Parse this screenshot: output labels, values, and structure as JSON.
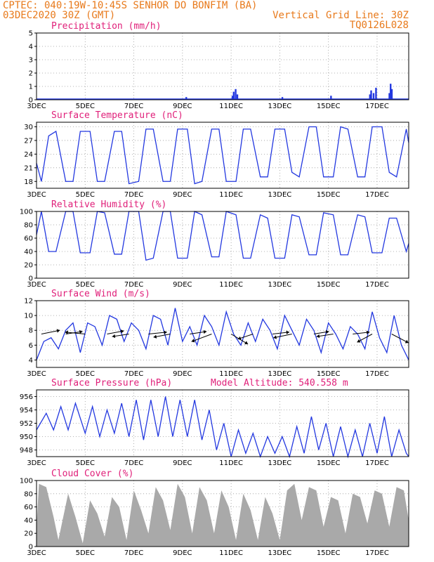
{
  "header": {
    "line1": "CPTEC:   040:19W-10:45S  SENHOR DO BONFIM (BA)",
    "line2_left": "03DEC2020 30Z (GMT)",
    "line2_right": "Vertical Grid Line: 30Z",
    "line3_right": "TQ0126L028"
  },
  "colors": {
    "header": "#e87a1c",
    "panel_title": "#e0207a",
    "series": "#2338e0",
    "cloud": "#a9a9a9"
  },
  "x_axis": {
    "date_labels": [
      "3DEC",
      "5DEC",
      "7DEC",
      "9DEC",
      "11DEC",
      "13DEC",
      "15DEC",
      "17DEC"
    ],
    "date_positions_days": [
      0,
      2,
      4,
      6,
      8,
      10,
      12,
      14
    ],
    "days_span": 15.3
  },
  "chart_data": [
    {
      "id": "precipitation",
      "type": "bar",
      "title": "Precipitation (mm/h)",
      "ylim": [
        0,
        5
      ],
      "yticks": [
        0,
        1,
        2,
        3,
        4,
        5
      ],
      "grid": true,
      "x_days": [
        6.15,
        8.05,
        8.1,
        8.18,
        8.25,
        10.1,
        12.1,
        13.7,
        13.75,
        13.85,
        13.95,
        14.5,
        14.55,
        14.6
      ],
      "values": [
        0.2,
        0.3,
        0.6,
        0.8,
        0.4,
        0.2,
        0.3,
        0.4,
        0.7,
        0.5,
        0.9,
        0.5,
        1.2,
        0.8
      ]
    },
    {
      "id": "temperature",
      "type": "line",
      "title": "Surface Temperature (nC)",
      "ylim": [
        16.5,
        31
      ],
      "yticks": [
        18,
        21,
        24,
        27,
        30
      ],
      "grid": true,
      "x_days": [
        0,
        0.2,
        0.5,
        0.8,
        1.2,
        1.5,
        1.8,
        2.2,
        2.5,
        2.8,
        3.2,
        3.5,
        3.8,
        4.2,
        4.5,
        4.8,
        5.2,
        5.5,
        5.8,
        6.2,
        6.5,
        6.8,
        7.2,
        7.5,
        7.8,
        8.2,
        8.5,
        8.8,
        9.2,
        9.5,
        9.8,
        10.2,
        10.5,
        10.8,
        11.2,
        11.5,
        11.8,
        12.2,
        12.5,
        12.8,
        13.2,
        13.5,
        13.8,
        14.2,
        14.5,
        14.8,
        15.2,
        15.3
      ],
      "values": [
        22,
        18,
        28,
        29,
        18,
        18,
        29,
        29,
        18,
        18,
        29,
        29,
        17.5,
        18,
        29.5,
        29.5,
        18,
        18,
        29.5,
        29.5,
        17.5,
        18,
        29.5,
        29.5,
        18,
        18,
        29.5,
        29.5,
        19,
        19,
        29.5,
        29.5,
        20,
        19,
        30,
        30,
        19,
        19,
        30,
        29.5,
        19,
        19,
        30,
        30,
        20,
        19,
        29.5,
        26.5
      ]
    },
    {
      "id": "humidity",
      "type": "line",
      "title": "Relative Humidity (%)",
      "ylim": [
        0,
        100
      ],
      "yticks": [
        0,
        20,
        40,
        60,
        80,
        100
      ],
      "grid": true,
      "x_days": [
        0,
        0.2,
        0.5,
        0.8,
        1.2,
        1.5,
        1.8,
        2.2,
        2.5,
        2.8,
        3.2,
        3.5,
        3.8,
        4.2,
        4.5,
        4.8,
        5.2,
        5.5,
        5.8,
        6.2,
        6.5,
        6.8,
        7.2,
        7.5,
        7.8,
        8.2,
        8.5,
        8.8,
        9.2,
        9.5,
        9.8,
        10.2,
        10.5,
        10.8,
        11.2,
        11.5,
        11.8,
        12.2,
        12.5,
        12.8,
        13.2,
        13.5,
        13.8,
        14.2,
        14.5,
        14.8,
        15.2,
        15.3
      ],
      "values": [
        65,
        100,
        40,
        40,
        100,
        100,
        38,
        38,
        100,
        98,
        36,
        36,
        100,
        100,
        27,
        30,
        100,
        100,
        30,
        30,
        100,
        95,
        32,
        32,
        100,
        95,
        30,
        30,
        95,
        90,
        30,
        30,
        95,
        92,
        35,
        35,
        98,
        95,
        35,
        35,
        95,
        92,
        38,
        38,
        90,
        90,
        40,
        52
      ]
    },
    {
      "id": "wind",
      "type": "line",
      "title": "Surface Wind (m/s)",
      "ylim": [
        3,
        12
      ],
      "yticks": [
        4,
        6,
        8,
        10,
        12
      ],
      "grid": true,
      "x_days": [
        0,
        0.3,
        0.6,
        0.9,
        1.2,
        1.5,
        1.8,
        2.1,
        2.4,
        2.7,
        3.0,
        3.3,
        3.6,
        3.9,
        4.2,
        4.5,
        4.8,
        5.1,
        5.4,
        5.7,
        6.0,
        6.3,
        6.6,
        6.9,
        7.2,
        7.5,
        7.8,
        8.1,
        8.4,
        8.7,
        9.0,
        9.3,
        9.6,
        9.9,
        10.2,
        10.5,
        10.8,
        11.1,
        11.4,
        11.7,
        12.0,
        12.3,
        12.6,
        12.9,
        13.2,
        13.5,
        13.8,
        14.1,
        14.4,
        14.7,
        15.0,
        15.3
      ],
      "values": [
        4,
        6.5,
        7,
        5.5,
        8,
        9,
        5,
        9,
        8.5,
        6,
        10,
        9.5,
        6.5,
        9,
        8,
        5.5,
        10,
        9.5,
        6,
        11,
        6.5,
        8.5,
        6,
        10,
        8.5,
        6,
        10.5,
        7.5,
        6,
        9,
        6.5,
        9.5,
        8,
        5.5,
        10,
        8,
        6,
        9.5,
        8,
        5,
        9,
        7.5,
        5.5,
        8.5,
        7.5,
        5.5,
        10.5,
        7,
        5,
        10,
        6,
        4
      ],
      "arrow_days": [
        0.2,
        1.2,
        2.0,
        2.9,
        3.8,
        4.6,
        5.5,
        6.3,
        7.2,
        8.0,
        8.9,
        9.7,
        10.5,
        11.4,
        12.2,
        13.0,
        13.8,
        14.6
      ],
      "arrow_dx": [
        1.1,
        1.0,
        -1.2,
        1.0,
        -1.0,
        1.1,
        -1.0,
        1.0,
        -1.2,
        1.0,
        -0.9,
        1.0,
        -1.1,
        0.9,
        -1.0,
        1.0,
        -0.9,
        1.0
      ],
      "arrow_dy": [
        -0.6,
        -0.4,
        -0.3,
        -0.5,
        0.4,
        -0.3,
        0.5,
        -0.4,
        1.2,
        1.6,
        0.8,
        -0.3,
        0.6,
        -0.4,
        0.4,
        -0.3,
        1.3,
        1.4
      ]
    },
    {
      "id": "pressure",
      "type": "line",
      "title": "Surface Pressure (hPa)",
      "model_altitude": "Model Altitude: 540.558 m",
      "ylim": [
        947,
        957
      ],
      "yticks": [
        948,
        950,
        952,
        954,
        956
      ],
      "grid": true,
      "x_days": [
        0,
        0.4,
        0.7,
        1.0,
        1.3,
        1.6,
        2.0,
        2.3,
        2.6,
        2.9,
        3.2,
        3.5,
        3.8,
        4.1,
        4.4,
        4.7,
        5.0,
        5.3,
        5.6,
        5.9,
        6.2,
        6.5,
        6.8,
        7.1,
        7.4,
        7.7,
        8.0,
        8.3,
        8.6,
        8.9,
        9.2,
        9.5,
        9.8,
        10.1,
        10.4,
        10.7,
        11.0,
        11.3,
        11.6,
        11.9,
        12.2,
        12.5,
        12.8,
        13.1,
        13.4,
        13.7,
        14.0,
        14.3,
        14.6,
        14.9,
        15.2,
        15.3
      ],
      "values": [
        951,
        953.5,
        951,
        954.5,
        951,
        955,
        950.5,
        954.5,
        950,
        954,
        950.5,
        955,
        950,
        955.5,
        949.5,
        955.5,
        950,
        956,
        950,
        955.5,
        950,
        955.5,
        949.5,
        954,
        948,
        952,
        947,
        951,
        947.5,
        950.5,
        947,
        950,
        947.5,
        950,
        947,
        951.5,
        947.5,
        953,
        948,
        952,
        947,
        951.5,
        947,
        951,
        947,
        952,
        947.5,
        953,
        946.5,
        951,
        947.5,
        947
      ]
    },
    {
      "id": "cloud",
      "type": "area",
      "title": "Cloud Cover (%)",
      "ylim": [
        0,
        100
      ],
      "yticks": [
        0,
        20,
        40,
        60,
        80,
        100
      ],
      "grid": true,
      "x_days": [
        0,
        0.1,
        0.4,
        0.7,
        0.9,
        1.3,
        1.6,
        1.9,
        2.2,
        2.5,
        2.8,
        3.1,
        3.4,
        3.7,
        4.0,
        4.3,
        4.6,
        4.9,
        5.2,
        5.5,
        5.8,
        6.1,
        6.4,
        6.7,
        7.0,
        7.3,
        7.6,
        7.9,
        8.2,
        8.5,
        8.8,
        9.1,
        9.4,
        9.7,
        10.0,
        10.3,
        10.6,
        10.9,
        11.2,
        11.5,
        11.8,
        12.1,
        12.4,
        12.7,
        13.0,
        13.3,
        13.6,
        13.9,
        14.2,
        14.5,
        14.8,
        15.1,
        15.3
      ],
      "values": [
        30,
        95,
        90,
        45,
        10,
        80,
        45,
        5,
        70,
        50,
        15,
        75,
        60,
        10,
        85,
        55,
        20,
        90,
        70,
        25,
        95,
        75,
        20,
        90,
        70,
        20,
        85,
        60,
        10,
        80,
        55,
        10,
        75,
        50,
        10,
        85,
        95,
        40,
        90,
        85,
        30,
        75,
        70,
        20,
        80,
        75,
        35,
        85,
        80,
        30,
        90,
        85,
        40
      ]
    }
  ]
}
